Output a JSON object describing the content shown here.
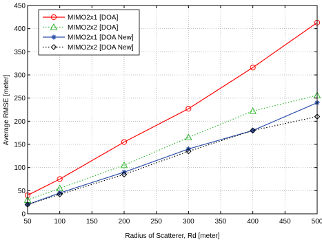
{
  "chart_data": {
    "type": "line",
    "title": "",
    "xlabel": "Radius of Scatterer, Rd [meter]",
    "ylabel": "Average RMSE [meter]",
    "xlim": [
      50,
      500
    ],
    "ylim": [
      0,
      450
    ],
    "xticks": [
      50,
      100,
      150,
      200,
      250,
      300,
      350,
      400,
      450,
      500
    ],
    "yticks": [
      0,
      50,
      100,
      150,
      200,
      250,
      300,
      350,
      400,
      450
    ],
    "grid": true,
    "legend_position": "top-left",
    "series": [
      {
        "name": "MIMO2x1 [DOA]",
        "color": "#ff0000",
        "line_style": "solid",
        "marker": "circle",
        "x": [
          50,
          100,
          200,
          300,
          400,
          500
        ],
        "y": [
          40,
          75,
          155,
          227,
          316,
          413
        ]
      },
      {
        "name": "MIMO2x2 [DOA]",
        "color": "#2db52d",
        "line_style": "dotted",
        "marker": "triangle",
        "x": [
          50,
          100,
          200,
          300,
          400,
          500
        ],
        "y": [
          30,
          55,
          105,
          165,
          222,
          256
        ]
      },
      {
        "name": "MIMO2x1 [DOA New]",
        "color": "#2a4ea8",
        "line_style": "solid",
        "marker": "star",
        "x": [
          50,
          100,
          200,
          300,
          400,
          500
        ],
        "y": [
          20,
          45,
          90,
          140,
          180,
          240
        ]
      },
      {
        "name": "MIMO2x2 [DOA New]",
        "color": "#000000",
        "line_style": "dotted",
        "marker": "diamond",
        "x": [
          50,
          100,
          200,
          300,
          400,
          500
        ],
        "y": [
          20,
          42,
          85,
          135,
          180,
          210
        ]
      }
    ]
  }
}
